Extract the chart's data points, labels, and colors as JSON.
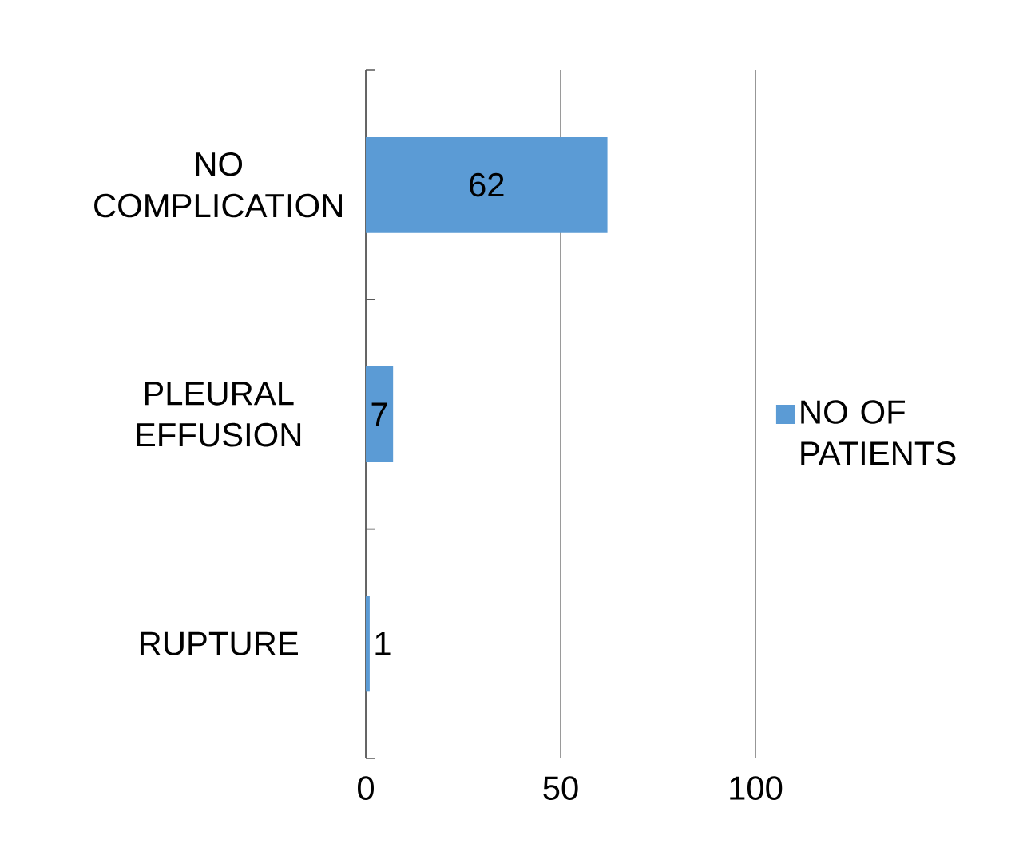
{
  "chart_data": {
    "type": "bar",
    "orientation": "horizontal",
    "categories": [
      "NO COMPLICATION",
      "PLEURAL EFFUSION",
      "RUPTURE"
    ],
    "series": [
      {
        "name": "NO OF PATIENTS",
        "color": "#5b9bd5",
        "values": [
          62,
          7,
          1
        ]
      }
    ],
    "xlim": [
      0,
      100
    ],
    "xticks": [
      0,
      50,
      100
    ],
    "grid": "x",
    "legend": "right",
    "data_labels": true
  }
}
